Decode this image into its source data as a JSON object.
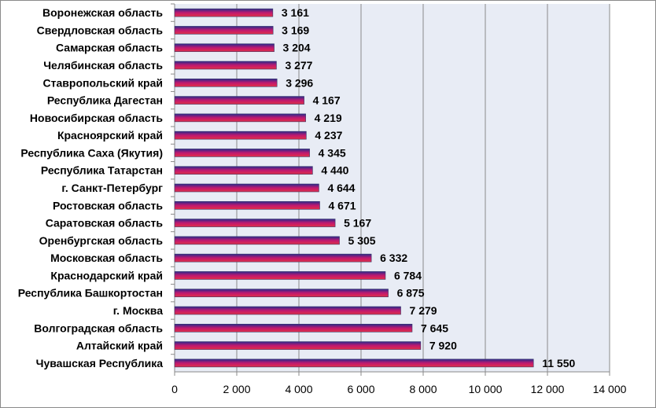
{
  "chart_data": {
    "type": "bar",
    "orientation": "horizontal",
    "categories": [
      "Воронежская область",
      "Свердловская область",
      "Самарская область",
      "Челябинская область",
      "Ставропольский край",
      "Республика Дагестан",
      "Новосибирская область",
      "Красноярский край",
      "Республика Саха (Якутия)",
      "Республика Татарстан",
      "г. Санкт-Петербург",
      "Ростовская область",
      "Саратовская область",
      "Оренбургская область",
      "Московская область",
      "Краснодарский край",
      "Республика Башкортостан",
      "г. Москва",
      "Волгоградская область",
      "Алтайский край",
      "Чувашская Республика"
    ],
    "values": [
      3161,
      3169,
      3204,
      3277,
      3296,
      4167,
      4219,
      4237,
      4345,
      4440,
      4644,
      4671,
      5167,
      5305,
      6332,
      6784,
      6875,
      7279,
      7645,
      7920,
      11550
    ],
    "value_labels": [
      "3 161",
      "3 169",
      "3 204",
      "3 277",
      "3 296",
      "4 167",
      "4 219",
      "4 237",
      "4 345",
      "4 440",
      "4 644",
      "4 671",
      "5 167",
      "5 305",
      "6 332",
      "6 784",
      "6 875",
      "7 279",
      "7 645",
      "7 920",
      "11 550"
    ],
    "xlim": [
      0,
      14000
    ],
    "x_ticks": [
      0,
      2000,
      4000,
      6000,
      8000,
      10000,
      12000,
      14000
    ],
    "x_tick_labels": [
      "0",
      "2 000",
      "4 000",
      "6 000",
      "8 000",
      "10 000",
      "12 000",
      "14 000"
    ],
    "grid": "vertical",
    "legend": "none",
    "title": "",
    "xlabel": "",
    "ylabel": "",
    "colors": {
      "plot_background": "#e8ecf5",
      "gridline": "#8a8a8a",
      "bar_top": "#2a2a8c",
      "bar_middle": "#c01870",
      "bar_bottom": "#e03048"
    }
  }
}
